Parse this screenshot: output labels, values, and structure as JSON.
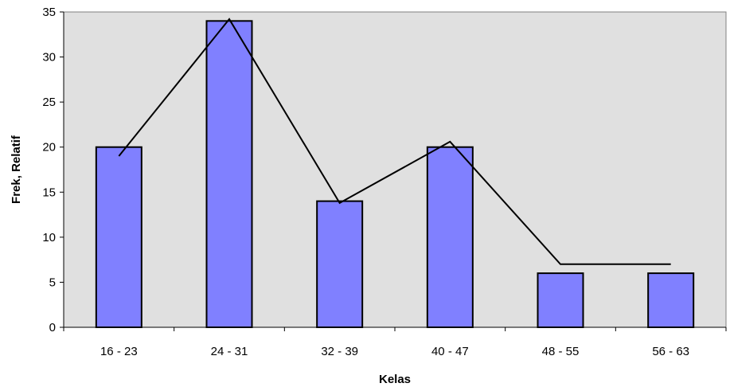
{
  "chart_data": {
    "type": "bar",
    "title": "",
    "xlabel": "Kelas",
    "ylabel": "Frek, Relatif",
    "categories": [
      "16 - 23",
      "24 - 31",
      "32 - 39",
      "40 - 47",
      "48 - 55",
      "56 - 63"
    ],
    "values": [
      20,
      34,
      14,
      20,
      6,
      6
    ],
    "line_overlay": [
      19,
      34.2,
      13.8,
      20.6,
      7,
      7
    ],
    "ylim": [
      0,
      35
    ],
    "yticks": [
      "0",
      "5",
      "10",
      "15",
      "20",
      "25",
      "30",
      "35"
    ],
    "grid": false,
    "legend": "none",
    "colors": {
      "bar_fill": "#8080ff",
      "plot_background": "#e0e0e0",
      "line": "#000000"
    }
  }
}
